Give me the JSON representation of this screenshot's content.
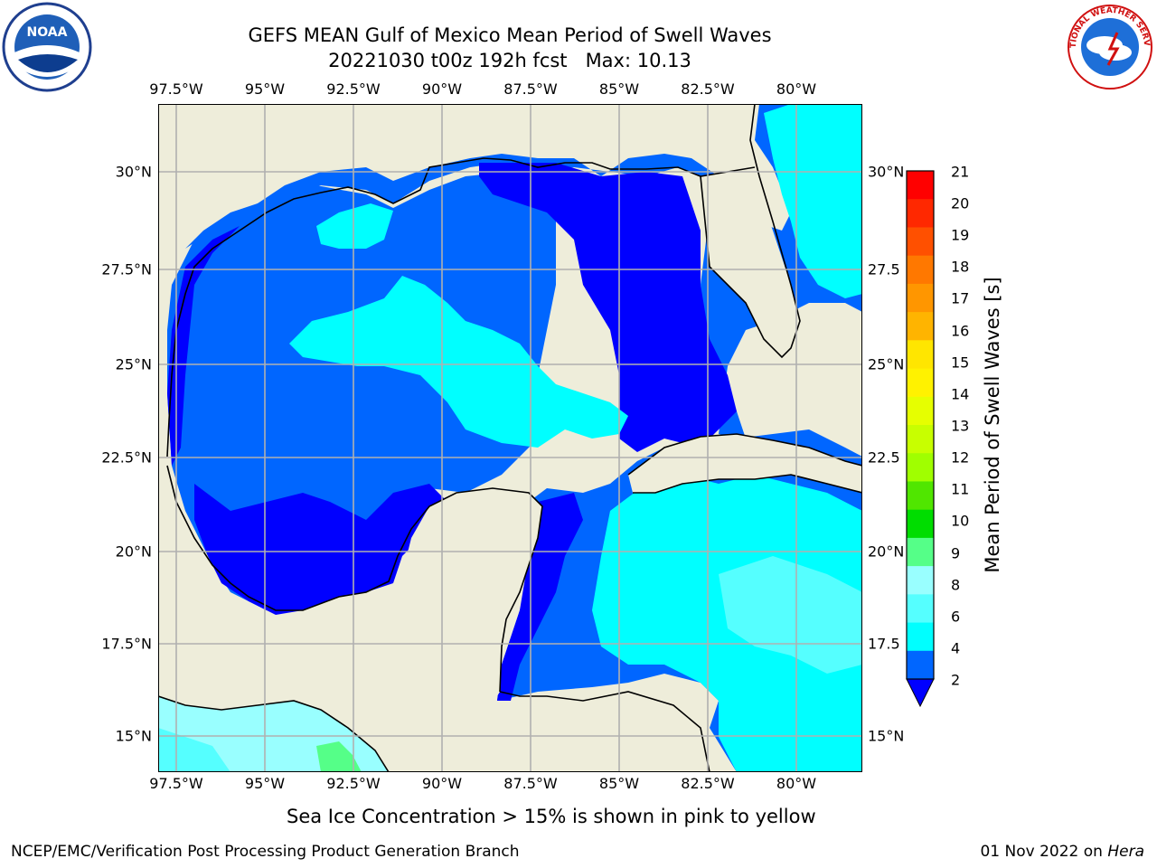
{
  "header": {
    "title_line1": "GEFS MEAN Gulf of Mexico Mean Period of Swell Waves",
    "title_line2": "20221030 t00z 192h fcst   Max: 10.13"
  },
  "logos": {
    "left": "NOAA",
    "right": "NATIONAL WEATHER SERVICE"
  },
  "map": {
    "lon_ticks": [
      "97.5°W",
      "95°W",
      "92.5°W",
      "90°W",
      "87.5°W",
      "85°W",
      "82.5°W",
      "80°W"
    ],
    "lat_ticks_left": [
      "30°N",
      "27.5°N",
      "25°N",
      "22.5°N",
      "20°N",
      "17.5°N",
      "15°N"
    ],
    "lat_ticks_right": [
      "30°N",
      "27.5",
      "25°N",
      "22.5",
      "20°N",
      "17.5",
      "15°N"
    ],
    "colors": {
      "land": "#eeedda",
      "grid": "#b0b0b0",
      "c2": "#0000ff",
      "c3": "#0066ff",
      "c4": "#00ffff",
      "c5": "#55ffff",
      "c6": "#99ffff",
      "c7": "#55ff88"
    }
  },
  "colorbar": {
    "label": "Mean Period of Swell Waves [s]",
    "ticks": [
      "21",
      "20",
      "19",
      "18",
      "17",
      "16",
      "15",
      "14",
      "13",
      "12",
      "11",
      "10",
      "9",
      "8",
      "6",
      "4",
      "2"
    ],
    "colors": [
      "#ff0000",
      "#ff2800",
      "#ff5000",
      "#ff7800",
      "#ff9600",
      "#ffb400",
      "#ffe600",
      "#fff200",
      "#e6ff00",
      "#c8ff00",
      "#a0ff00",
      "#50e600",
      "#00dd00",
      "#55ff88",
      "#99ffff",
      "#55ffff",
      "#00ffff",
      "#0066ff"
    ]
  },
  "footer": {
    "note": "Sea Ice Concentration > 15% is shown in pink to yellow",
    "left": "NCEP/EMC/Verification Post Processing Product Generation Branch",
    "right_date": "01 Nov 2022 on ",
    "right_host": "Hera"
  }
}
